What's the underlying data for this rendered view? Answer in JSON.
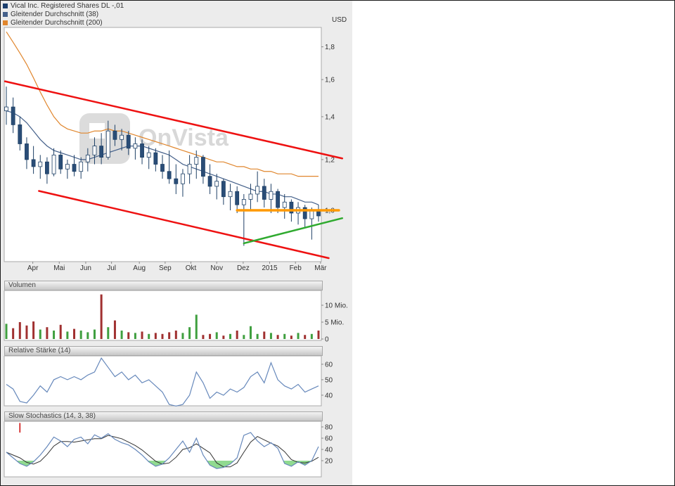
{
  "legend": {
    "items": [
      {
        "label": "Vical Inc. Registered Shares DL -,01",
        "color": "#1c3f6e"
      },
      {
        "label": "Gleitender Durchschnitt (38)",
        "color": "#44608a"
      },
      {
        "label": "Gleitender Durchschnitt (200)",
        "color": "#e0862d"
      }
    ],
    "currency_label": "USD"
  },
  "watermark": {
    "text": "OnVista"
  },
  "panels": {
    "volume_title": "Volumen",
    "rsi_title": "Relative Stärke (14)",
    "stoch_title": "Slow Stochastics (14, 3, 38)"
  },
  "chart_data": [
    {
      "type": "candlestick",
      "title": "Vical Inc. Registered Shares DL -,01",
      "ylabel": "USD",
      "yscale": "log",
      "ylim": [
        0.83,
        1.93
      ],
      "yticks": [
        {
          "value": 1.8,
          "label": "1,8"
        },
        {
          "value": 1.6,
          "label": "1,6"
        },
        {
          "value": 1.4,
          "label": "1,4"
        },
        {
          "value": 1.2,
          "label": "1,2"
        },
        {
          "value": 1.0,
          "label": "1,0"
        }
      ],
      "xticks": [
        {
          "label": "Apr",
          "i": 3.9
        },
        {
          "label": "Mai",
          "i": 7.8
        },
        {
          "label": "Jun",
          "i": 11.7
        },
        {
          "label": "Jul",
          "i": 15.5
        },
        {
          "label": "Aug",
          "i": 19.6
        },
        {
          "label": "Sep",
          "i": 23.4
        },
        {
          "label": "Okt",
          "i": 27.2
        },
        {
          "label": "Nov",
          "i": 31.0
        },
        {
          "label": "Dez",
          "i": 34.9
        },
        {
          "label": "2015",
          "i": 38.8
        },
        {
          "label": "Feb",
          "i": 42.6
        },
        {
          "label": "Mär",
          "i": 46.3
        }
      ],
      "candle_colors": {
        "up_fill": "#ffffff",
        "down_fill": "#2a4d77",
        "stroke": "#1e4066"
      },
      "ohlc": [
        [
          1.43,
          1.56,
          1.36,
          1.45
        ],
        [
          1.45,
          1.5,
          1.32,
          1.36
        ],
        [
          1.36,
          1.4,
          1.24,
          1.27
        ],
        [
          1.27,
          1.3,
          1.16,
          1.2
        ],
        [
          1.2,
          1.26,
          1.14,
          1.17
        ],
        [
          1.17,
          1.22,
          1.12,
          1.19
        ],
        [
          1.19,
          1.21,
          1.1,
          1.14
        ],
        [
          1.14,
          1.25,
          1.13,
          1.22
        ],
        [
          1.22,
          1.24,
          1.14,
          1.16
        ],
        [
          1.16,
          1.2,
          1.12,
          1.18
        ],
        [
          1.18,
          1.22,
          1.13,
          1.15
        ],
        [
          1.15,
          1.21,
          1.12,
          1.19
        ],
        [
          1.19,
          1.25,
          1.15,
          1.22
        ],
        [
          1.22,
          1.3,
          1.18,
          1.26
        ],
        [
          1.26,
          1.32,
          1.18,
          1.21
        ],
        [
          1.21,
          1.38,
          1.2,
          1.33
        ],
        [
          1.33,
          1.36,
          1.26,
          1.29
        ],
        [
          1.29,
          1.34,
          1.24,
          1.31
        ],
        [
          1.31,
          1.33,
          1.22,
          1.25
        ],
        [
          1.25,
          1.3,
          1.2,
          1.27
        ],
        [
          1.27,
          1.29,
          1.18,
          1.21
        ],
        [
          1.21,
          1.26,
          1.16,
          1.23
        ],
        [
          1.23,
          1.25,
          1.15,
          1.18
        ],
        [
          1.18,
          1.22,
          1.12,
          1.15
        ],
        [
          1.15,
          1.24,
          1.1,
          1.12
        ],
        [
          1.12,
          1.18,
          1.06,
          1.1
        ],
        [
          1.1,
          1.16,
          1.05,
          1.14
        ],
        [
          1.14,
          1.22,
          1.1,
          1.18
        ],
        [
          1.18,
          1.24,
          1.12,
          1.21
        ],
        [
          1.21,
          1.22,
          1.1,
          1.13
        ],
        [
          1.13,
          1.18,
          1.06,
          1.09
        ],
        [
          1.09,
          1.14,
          1.04,
          1.11
        ],
        [
          1.11,
          1.12,
          1.02,
          1.05
        ],
        [
          1.05,
          1.1,
          1.0,
          1.07
        ],
        [
          1.07,
          1.09,
          0.99,
          1.02
        ],
        [
          1.02,
          1.06,
          0.88,
          1.04
        ],
        [
          1.04,
          1.1,
          1.0,
          1.06
        ],
        [
          1.06,
          1.15,
          1.03,
          1.09
        ],
        [
          1.09,
          1.12,
          1.01,
          1.04
        ],
        [
          1.04,
          1.1,
          0.99,
          1.07
        ],
        [
          1.07,
          1.08,
          0.99,
          1.01
        ],
        [
          1.01,
          1.06,
          0.97,
          1.03
        ],
        [
          1.03,
          1.04,
          0.96,
          0.99
        ],
        [
          0.99,
          1.03,
          0.95,
          1.01
        ],
        [
          1.01,
          1.02,
          0.94,
          0.97
        ],
        [
          0.97,
          1.01,
          0.9,
          1.0
        ],
        [
          1.0,
          1.02,
          0.96,
          0.98
        ]
      ],
      "overlays": {
        "ma38": {
          "name": "Gleitender Durchschnitt (38)",
          "color": "#44608a",
          "values": [
            1.43,
            1.42,
            1.4,
            1.37,
            1.33,
            1.29,
            1.26,
            1.24,
            1.23,
            1.22,
            1.21,
            1.2,
            1.2,
            1.21,
            1.22,
            1.23,
            1.24,
            1.25,
            1.26,
            1.26,
            1.26,
            1.25,
            1.24,
            1.23,
            1.22,
            1.2,
            1.18,
            1.17,
            1.16,
            1.15,
            1.14,
            1.13,
            1.12,
            1.11,
            1.1,
            1.09,
            1.08,
            1.07,
            1.07,
            1.06,
            1.06,
            1.05,
            1.05,
            1.04,
            1.03,
            1.03,
            1.02
          ]
        },
        "ma200": {
          "name": "Gleitender Durchschnitt (200)",
          "color": "#e0862d",
          "values": [
            1.9,
            1.83,
            1.76,
            1.69,
            1.61,
            1.53,
            1.46,
            1.4,
            1.36,
            1.34,
            1.33,
            1.32,
            1.32,
            1.33,
            1.33,
            1.34,
            1.33,
            1.33,
            1.32,
            1.31,
            1.3,
            1.29,
            1.28,
            1.27,
            1.26,
            1.25,
            1.24,
            1.23,
            1.22,
            1.21,
            1.2,
            1.19,
            1.19,
            1.18,
            1.17,
            1.17,
            1.16,
            1.16,
            1.15,
            1.15,
            1.14,
            1.14,
            1.14,
            1.13,
            1.13,
            1.13,
            1.13
          ]
        },
        "trendlines": [
          {
            "name": "upper-channel-line",
            "color": "#ee1111",
            "width": 2.5,
            "points": [
              [
                -0.2,
                1.59
              ],
              [
                49.5,
                1.205
              ]
            ]
          },
          {
            "name": "lower-channel-line",
            "color": "#ee1111",
            "width": 2.5,
            "points": [
              [
                4.8,
                1.072
              ],
              [
                47.5,
                0.842
              ]
            ]
          },
          {
            "name": "horizontal-support-orange",
            "color": "#ff9900",
            "width": 3.5,
            "points": [
              [
                34,
                1.0
              ],
              [
                49,
                1.0
              ]
            ]
          },
          {
            "name": "ascending-support-green",
            "color": "#2faa2f",
            "width": 2.5,
            "points": [
              [
                35,
                0.888
              ],
              [
                49.5,
                0.972
              ]
            ]
          }
        ]
      }
    },
    {
      "type": "bar",
      "title": "Volumen",
      "unit": "Mio.",
      "yticks": [
        {
          "value": 10,
          "label": "10 Mio."
        },
        {
          "value": 5,
          "label": "5 Mio."
        },
        {
          "value": 0,
          "label": "0"
        }
      ],
      "up_color": "#3f9f3f",
      "down_color": "#a03030",
      "values": [
        4.5,
        3.2,
        5.0,
        4.0,
        5.2,
        2.8,
        3.5,
        2.5,
        4.2,
        2.2,
        3.0,
        2.5,
        2.0,
        2.8,
        13.2,
        3.5,
        5.5,
        2.5,
        2.0,
        1.8,
        2.2,
        1.5,
        1.8,
        1.5,
        2.0,
        2.5,
        1.8,
        3.5,
        7.2,
        1.2,
        1.5,
        2.0,
        1.0,
        1.5,
        2.5,
        1.2,
        3.8,
        1.5,
        2.2,
        1.8,
        1.2,
        1.5,
        1.0,
        1.8,
        1.2,
        1.5,
        2.5
      ]
    },
    {
      "type": "line",
      "title": "Relative Stärke (14)",
      "color": "#6688bb",
      "ylim": [
        32,
        65
      ],
      "yticks": [
        {
          "value": 60,
          "label": "60"
        },
        {
          "value": 50,
          "label": "50"
        },
        {
          "value": 40,
          "label": "40"
        }
      ],
      "values": [
        47,
        44,
        36,
        35,
        40,
        46,
        42,
        50,
        52,
        50,
        52,
        50,
        53,
        55,
        64,
        58,
        52,
        55,
        50,
        53,
        48,
        50,
        46,
        42,
        34,
        33,
        34,
        40,
        55,
        48,
        38,
        42,
        40,
        44,
        42,
        45,
        52,
        55,
        48,
        61,
        50,
        46,
        44,
        47,
        42,
        44,
        46
      ]
    },
    {
      "type": "line",
      "title": "Slow Stochastics (14, 3, 38)",
      "ylim": [
        0,
        100
      ],
      "yticks": [
        {
          "value": 80,
          "label": "80"
        },
        {
          "value": 60,
          "label": "60"
        },
        {
          "value": 40,
          "label": "40"
        },
        {
          "value": 20,
          "label": "20"
        }
      ],
      "fill_below": 20,
      "fill_color": "#7cd47c",
      "marker": {
        "index": 2,
        "from": 87,
        "to": 70,
        "color": "#cc0000"
      },
      "series": [
        {
          "name": "%K",
          "color": "#6688bb",
          "values": [
            35,
            25,
            15,
            10,
            18,
            30,
            45,
            62,
            55,
            45,
            58,
            62,
            50,
            66,
            60,
            68,
            58,
            52,
            48,
            40,
            30,
            18,
            10,
            14,
            25,
            40,
            55,
            35,
            60,
            30,
            12,
            6,
            8,
            14,
            25,
            65,
            70,
            55,
            45,
            52,
            42,
            15,
            10,
            18,
            12,
            20,
            45
          ]
        },
        {
          "name": "%D",
          "color": "#333333",
          "values": [
            35,
            30,
            25,
            17,
            14,
            19,
            31,
            46,
            54,
            54,
            53,
            55,
            57,
            59,
            59,
            65,
            62,
            59,
            53,
            47,
            39,
            29,
            19,
            14,
            16,
            26,
            40,
            43,
            50,
            42,
            34,
            16,
            9,
            9,
            16,
            35,
            53,
            63,
            57,
            51,
            46,
            36,
            22,
            17,
            16,
            19,
            26
          ]
        }
      ]
    }
  ]
}
